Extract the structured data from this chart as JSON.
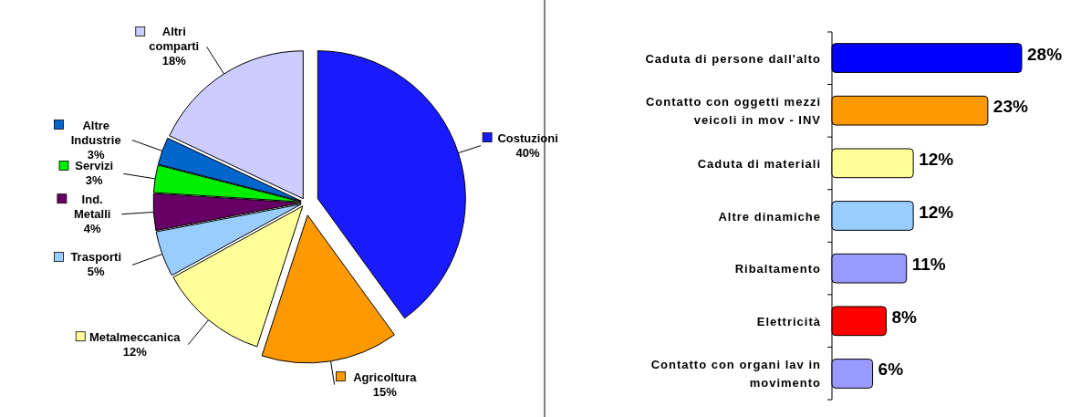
{
  "chart_data": [
    {
      "type": "pie",
      "categories": [
        "Costuzioni",
        "Agricoltura",
        "Metalmeccanica",
        "Trasporti",
        "Ind. Metalli",
        "Servizi",
        "Altre Industrie",
        "Altri comparti"
      ],
      "values": [
        40,
        15,
        12,
        5,
        4,
        3,
        3,
        18
      ],
      "colors": [
        "#1a1aff",
        "#ff9900",
        "#ffff99",
        "#99ccff",
        "#660066",
        "#00ee00",
        "#0066cc",
        "#ccccff"
      ],
      "value_labels": [
        "40%",
        "15%",
        "12%",
        "5%",
        "4%",
        "3%",
        "3%",
        "18%"
      ],
      "legend": "left"
    },
    {
      "type": "bar",
      "orientation": "horizontal",
      "categories": [
        "Caduta di persone dall'alto",
        "Contatto con oggetti mezzi veicoli in mov - INV",
        "Caduta di materiali",
        "Altre dinamiche",
        "Ribaltamento",
        "Elettricità",
        "Contatto con organi lav in movimento"
      ],
      "values": [
        28,
        23,
        12,
        12,
        11,
        8,
        6
      ],
      "colors": [
        "#0000ff",
        "#ff9900",
        "#ffff99",
        "#99ccff",
        "#9999ff",
        "#ff0000",
        "#9999ff"
      ],
      "value_labels": [
        "28%",
        "23%",
        "12%",
        "12%",
        "11%",
        "8%",
        "6%"
      ]
    }
  ]
}
